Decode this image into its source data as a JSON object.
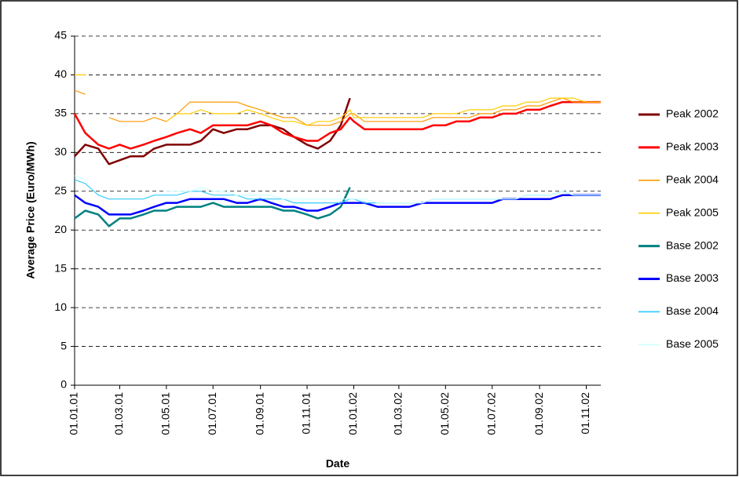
{
  "chart_data": {
    "type": "line",
    "x_label": "Date",
    "y_label": "Average Price (Euro/MWh)",
    "x": [
      "01.01.01",
      "15.01.01",
      "01.02.01",
      "15.02.01",
      "01.03.01",
      "15.03.01",
      "01.04.01",
      "15.04.01",
      "01.05.01",
      "15.05.01",
      "01.06.01",
      "15.06.01",
      "01.07.01",
      "15.07.01",
      "01.08.01",
      "15.08.01",
      "01.09.01",
      "15.09.01",
      "01.10.01",
      "15.10.01",
      "01.11.01",
      "15.11.01",
      "01.12.01",
      "15.12.01",
      "27.12.01",
      "01.01.02",
      "15.01.02",
      "01.02.02",
      "15.02.02",
      "01.03.02",
      "15.03.02",
      "01.04.02",
      "15.04.02",
      "01.05.02",
      "15.05.02",
      "01.06.02",
      "15.06.02",
      "01.07.02",
      "15.07.02",
      "01.08.02",
      "15.08.02",
      "01.09.02",
      "15.09.02",
      "01.10.02",
      "15.10.02",
      "01.11.02",
      "15.11.02",
      "20.11.02"
    ],
    "series": [
      {
        "name": "Peak 2002",
        "color": "#800000",
        "values": [
          29.5,
          31,
          30.5,
          28.5,
          29,
          29.5,
          29.5,
          30.5,
          31,
          31,
          31,
          31.5,
          33,
          32.5,
          33,
          33,
          33.5,
          33.5,
          33,
          32,
          31,
          30.5,
          31.5,
          33.5,
          37,
          null,
          null,
          null,
          null,
          null,
          null,
          null,
          null,
          null,
          null,
          null,
          null,
          null,
          null,
          null,
          null,
          null,
          null,
          null,
          null,
          null,
          null,
          null
        ]
      },
      {
        "name": "Peak 2003",
        "color": "#ff0000",
        "values": [
          35,
          32.5,
          31,
          30.5,
          31,
          30.5,
          31,
          31.5,
          32,
          32.5,
          33,
          32.5,
          33.5,
          33.5,
          33.5,
          33.5,
          34,
          33.5,
          32.5,
          32,
          31.5,
          31.5,
          32.5,
          33,
          34.5,
          34,
          33,
          33,
          33,
          33,
          33,
          33,
          33.5,
          33.5,
          34,
          34,
          34.5,
          34.5,
          35,
          35,
          35.5,
          35.5,
          36,
          36.5,
          36.5,
          36.5,
          36.5,
          36.5
        ]
      },
      {
        "name": "Peak 2004",
        "color": "#ff9900",
        "values": [
          38,
          37.5,
          null,
          34.5,
          34,
          34,
          34,
          34.5,
          34,
          35,
          36.5,
          36.5,
          36.5,
          36.5,
          36.5,
          36,
          35.5,
          35,
          34.5,
          34.5,
          33.5,
          33.5,
          33.5,
          34,
          35,
          35,
          34,
          34,
          34,
          34,
          34,
          34,
          34.5,
          34.5,
          34.5,
          34.5,
          35,
          35,
          35.5,
          35.5,
          36,
          36,
          36.5,
          37,
          36.5,
          36.5,
          36.5,
          36.5
        ]
      },
      {
        "name": "Peak 2005",
        "color": "#ffcc00",
        "values": [
          40,
          40,
          null,
          null,
          null,
          null,
          null,
          null,
          34,
          35,
          35,
          35.5,
          35,
          35,
          35,
          35.5,
          35,
          34.5,
          34,
          34,
          33.5,
          34,
          34,
          34.5,
          35.5,
          34.5,
          34.5,
          34.5,
          34.5,
          34.5,
          34.5,
          34.5,
          35,
          35,
          35,
          35.5,
          35.5,
          35.5,
          36,
          36,
          36.5,
          36.5,
          37,
          37,
          37,
          36.5,
          36.5,
          36.5
        ]
      },
      {
        "name": "Base 2002",
        "color": "#008080",
        "values": [
          21.5,
          22.5,
          22,
          20.5,
          21.5,
          21.5,
          22,
          22.5,
          22.5,
          23,
          23,
          23,
          23.5,
          23,
          23,
          23,
          23,
          23,
          22.5,
          22.5,
          22,
          21.5,
          22,
          23,
          25.5,
          null,
          null,
          null,
          null,
          null,
          null,
          null,
          null,
          null,
          null,
          null,
          null,
          null,
          null,
          null,
          null,
          null,
          null,
          null,
          null,
          null,
          null,
          null
        ]
      },
      {
        "name": "Base 2003",
        "color": "#0000ff",
        "values": [
          24.5,
          23.5,
          23,
          22,
          22,
          22,
          22.5,
          23,
          23.5,
          23.5,
          24,
          24,
          24,
          24,
          23.5,
          23.5,
          24,
          23.5,
          23,
          23,
          22.5,
          22.5,
          23,
          23.5,
          23.5,
          23.5,
          23.5,
          23,
          23,
          23,
          23,
          23.5,
          23.5,
          23.5,
          23.5,
          23.5,
          23.5,
          23.5,
          24,
          24,
          24,
          24,
          24,
          24.5,
          24.5,
          24.5,
          24.5,
          24.5
        ]
      },
      {
        "name": "Base 2004",
        "color": "#33ccff",
        "values": [
          26.5,
          26,
          24.5,
          24,
          24,
          24,
          24,
          24.5,
          24.5,
          24.5,
          25,
          25,
          24.5,
          24.5,
          24.5,
          24,
          24,
          24,
          24,
          23.5,
          23.5,
          23.5,
          23.5,
          23.5,
          24,
          24,
          23.5,
          23.5,
          23.5,
          23.5,
          23.5,
          23.5,
          24,
          24,
          24,
          24,
          24,
          24,
          24,
          24,
          24.5,
          24.5,
          24.5,
          25,
          24.5,
          24.5,
          24.5,
          24.5
        ]
      },
      {
        "name": "Base 2005",
        "color": "#ccffff",
        "values": [
          27,
          26.5,
          null,
          null,
          null,
          null,
          null,
          null,
          25,
          25,
          25,
          25.5,
          25,
          25,
          24.5,
          24.5,
          24.5,
          24.5,
          24,
          24,
          24,
          24,
          24,
          24,
          24,
          24,
          24,
          23.5,
          23.5,
          23.5,
          23.5,
          23.5,
          24,
          24,
          24,
          24,
          24,
          24,
          24,
          24,
          24.5,
          24.5,
          24.5,
          25,
          24.5,
          24.5,
          24.5,
          24.5
        ]
      }
    ],
    "xlim": [
      "01.01.01",
      "20.11.02"
    ],
    "xticks": [
      "01.01.01",
      "01.03.01",
      "01.05.01",
      "01.07.01",
      "01.09.01",
      "01.11.01",
      "01.01.02",
      "01.03.02",
      "01.05.02",
      "01.07.02",
      "01.09.02",
      "01.11.02"
    ],
    "ylim": [
      0,
      45
    ],
    "yticks": [
      0,
      5,
      10,
      15,
      20,
      25,
      30,
      35,
      40,
      45
    ],
    "grid": true,
    "legend": "right"
  }
}
